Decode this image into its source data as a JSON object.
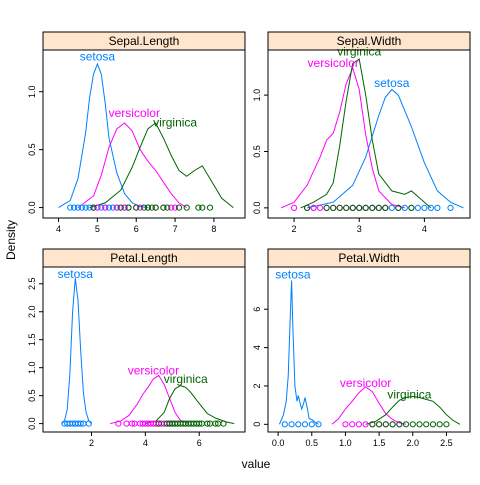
{
  "xlabel": "value",
  "ylabel": "Density",
  "colors": {
    "setosa": "#0080ff",
    "versicolor": "#ff00ff",
    "virginica": "#006400",
    "strip": "#ffe5cc"
  },
  "chart_data": [
    {
      "type": "line",
      "title": "Sepal.Length",
      "xlim": [
        3.6,
        8.8
      ],
      "ylim": [
        -0.09,
        1.36
      ],
      "xticks": [
        4,
        5,
        6,
        7,
        8
      ],
      "yticks": [
        0.0,
        0.5,
        1.0
      ],
      "series": [
        {
          "name": "setosa",
          "x": [
            4.0,
            4.3,
            4.5,
            4.7,
            4.8,
            4.9,
            5.0,
            5.1,
            5.2,
            5.3,
            5.5,
            5.7,
            5.9,
            6.1,
            6.3
          ],
          "y": [
            0.0,
            0.06,
            0.25,
            0.65,
            0.95,
            1.15,
            1.24,
            1.15,
            0.9,
            0.6,
            0.3,
            0.12,
            0.04,
            0.01,
            0.0
          ],
          "points": [
            4.3,
            4.4,
            4.5,
            4.6,
            4.7,
            4.8,
            4.9,
            5.0,
            5.1,
            5.2,
            5.3,
            5.4,
            5.5,
            5.7,
            5.8
          ]
        },
        {
          "name": "versicolor",
          "x": [
            4.5,
            4.9,
            5.1,
            5.3,
            5.5,
            5.7,
            5.9,
            6.1,
            6.3,
            6.5,
            6.7,
            6.9,
            7.1,
            7.3
          ],
          "y": [
            0.0,
            0.1,
            0.28,
            0.52,
            0.68,
            0.73,
            0.66,
            0.5,
            0.4,
            0.32,
            0.22,
            0.12,
            0.04,
            0.0
          ],
          "points": [
            4.9,
            5.0,
            5.2,
            5.5,
            5.6,
            5.7,
            5.8,
            6.0,
            6.1,
            6.3,
            6.5,
            6.7,
            6.9,
            7.0
          ]
        },
        {
          "name": "virginica",
          "x": [
            4.8,
            5.2,
            5.6,
            5.9,
            6.1,
            6.3,
            6.5,
            6.7,
            6.9,
            7.1,
            7.3,
            7.5,
            7.7,
            7.9,
            8.2,
            8.5
          ],
          "y": [
            0.0,
            0.04,
            0.15,
            0.35,
            0.52,
            0.68,
            0.73,
            0.6,
            0.45,
            0.32,
            0.27,
            0.32,
            0.36,
            0.25,
            0.08,
            0.0
          ],
          "points": [
            4.9,
            5.6,
            5.8,
            6.0,
            6.2,
            6.3,
            6.4,
            6.5,
            6.7,
            6.8,
            7.1,
            7.3,
            7.6,
            7.7,
            7.9
          ]
        }
      ],
      "labels": [
        {
          "text": "setosa",
          "series": "setosa",
          "x": 5.0,
          "y": 1.27
        },
        {
          "text": "versicolor",
          "series": "versicolor",
          "x": 5.95,
          "y": 0.78
        },
        {
          "text": "virginica",
          "series": "virginica",
          "x": 7.0,
          "y": 0.7
        }
      ]
    },
    {
      "type": "line",
      "title": "Sepal.Width",
      "xlim": [
        1.6,
        4.7
      ],
      "ylim": [
        -0.09,
        1.4
      ],
      "xticks": [
        2,
        3,
        4
      ],
      "yticks": [
        0.0,
        0.5,
        1.0
      ],
      "series": [
        {
          "name": "setosa",
          "x": [
            2.2,
            2.6,
            2.9,
            3.1,
            3.3,
            3.4,
            3.5,
            3.6,
            3.8,
            4.0,
            4.2,
            4.4,
            4.6
          ],
          "y": [
            0.0,
            0.05,
            0.2,
            0.45,
            0.82,
            0.98,
            1.05,
            1.0,
            0.72,
            0.4,
            0.15,
            0.05,
            0.0
          ],
          "points": [
            2.3,
            2.9,
            3.0,
            3.1,
            3.2,
            3.3,
            3.4,
            3.5,
            3.6,
            3.7,
            3.8,
            3.9,
            4.0,
            4.1,
            4.2,
            4.4
          ]
        },
        {
          "name": "versicolor",
          "x": [
            1.8,
            2.0,
            2.2,
            2.4,
            2.5,
            2.6,
            2.7,
            2.8,
            2.9,
            3.0,
            3.1,
            3.2,
            3.3,
            3.5,
            3.7
          ],
          "y": [
            0.0,
            0.05,
            0.2,
            0.45,
            0.6,
            0.66,
            0.85,
            1.1,
            1.24,
            1.05,
            0.65,
            0.35,
            0.15,
            0.03,
            0.0
          ],
          "points": [
            2.0,
            2.2,
            2.3,
            2.4,
            2.5,
            2.6,
            2.7,
            2.8,
            2.9,
            3.0,
            3.1,
            3.2,
            3.3,
            3.4
          ]
        },
        {
          "name": "virginica",
          "x": [
            2.1,
            2.3,
            2.5,
            2.6,
            2.7,
            2.8,
            2.9,
            3.0,
            3.1,
            3.2,
            3.3,
            3.5,
            3.7,
            3.8,
            4.0,
            4.1
          ],
          "y": [
            0.0,
            0.05,
            0.12,
            0.22,
            0.55,
            0.95,
            1.28,
            1.32,
            1.0,
            0.6,
            0.3,
            0.15,
            0.12,
            0.15,
            0.05,
            0.0
          ],
          "points": [
            2.2,
            2.5,
            2.6,
            2.7,
            2.8,
            2.9,
            3.0,
            3.1,
            3.2,
            3.3,
            3.4,
            3.6,
            3.8
          ]
        }
      ],
      "labels": [
        {
          "text": "virginica",
          "series": "virginica",
          "x": 3.0,
          "y": 1.35
        },
        {
          "text": "versicolor",
          "series": "versicolor",
          "x": 2.6,
          "y": 1.25
        },
        {
          "text": "setosa",
          "series": "setosa",
          "x": 3.5,
          "y": 1.07
        }
      ]
    },
    {
      "type": "line",
      "title": "Petal.Length",
      "xlim": [
        0.2,
        7.7
      ],
      "ylim": [
        -0.15,
        2.8
      ],
      "xticks": [
        2,
        4,
        6
      ],
      "yticks": [
        0.0,
        0.5,
        1.0,
        1.5,
        2.0,
        2.5
      ],
      "series": [
        {
          "name": "setosa",
          "x": [
            0.9,
            1.0,
            1.1,
            1.2,
            1.3,
            1.4,
            1.5,
            1.6,
            1.7,
            1.8,
            1.9,
            2.0
          ],
          "y": [
            0.0,
            0.05,
            0.25,
            0.9,
            2.0,
            2.6,
            2.2,
            1.3,
            0.55,
            0.2,
            0.05,
            0.0
          ],
          "points": [
            1.0,
            1.1,
            1.2,
            1.3,
            1.4,
            1.5,
            1.6,
            1.7,
            1.9
          ]
        },
        {
          "name": "versicolor",
          "x": [
            2.7,
            3.1,
            3.4,
            3.7,
            3.9,
            4.1,
            4.3,
            4.5,
            4.7,
            4.9,
            5.1,
            5.3,
            5.6
          ],
          "y": [
            0.0,
            0.05,
            0.15,
            0.35,
            0.52,
            0.65,
            0.8,
            0.86,
            0.7,
            0.45,
            0.2,
            0.06,
            0.0
          ],
          "points": [
            3.0,
            3.3,
            3.5,
            3.6,
            3.8,
            3.9,
            4.0,
            4.1,
            4.2,
            4.3,
            4.4,
            4.5,
            4.6,
            4.7,
            4.8,
            4.9,
            5.0,
            5.1
          ]
        },
        {
          "name": "virginica",
          "x": [
            4.0,
            4.4,
            4.7,
            4.9,
            5.1,
            5.3,
            5.5,
            5.7,
            5.9,
            6.1,
            6.3,
            6.6,
            7.0,
            7.3
          ],
          "y": [
            0.0,
            0.05,
            0.2,
            0.45,
            0.62,
            0.68,
            0.65,
            0.55,
            0.42,
            0.3,
            0.18,
            0.1,
            0.03,
            0.0
          ],
          "points": [
            4.5,
            4.8,
            4.9,
            5.0,
            5.1,
            5.2,
            5.3,
            5.4,
            5.5,
            5.6,
            5.7,
            5.8,
            5.9,
            6.0,
            6.1,
            6.3,
            6.4,
            6.6,
            6.7,
            6.9
          ]
        }
      ],
      "labels": [
        {
          "text": "setosa",
          "series": "setosa",
          "x": 1.4,
          "y": 2.6
        },
        {
          "text": "versicolor",
          "series": "versicolor",
          "x": 4.3,
          "y": 0.88
        },
        {
          "text": "virginica",
          "series": "virginica",
          "x": 5.5,
          "y": 0.73
        }
      ]
    },
    {
      "type": "line",
      "title": "Petal.Width",
      "xlim": [
        -0.15,
        2.85
      ],
      "ylim": [
        -0.4,
        8.2
      ],
      "xticks": [
        0.0,
        0.5,
        1.0,
        1.5,
        2.0,
        2.5
      ],
      "yticks": [
        0,
        2,
        4,
        6
      ],
      "series": [
        {
          "name": "setosa",
          "x": [
            0.02,
            0.08,
            0.12,
            0.15,
            0.18,
            0.2,
            0.22,
            0.25,
            0.28,
            0.3,
            0.32,
            0.35,
            0.38,
            0.4,
            0.43,
            0.46,
            0.5,
            0.55,
            0.6
          ],
          "y": [
            0.0,
            0.5,
            1.2,
            2.5,
            5.5,
            7.5,
            5.0,
            2.0,
            1.2,
            1.5,
            1.2,
            0.8,
            1.1,
            1.4,
            0.9,
            0.3,
            0.25,
            0.1,
            0.0
          ],
          "points": [
            0.1,
            0.2,
            0.3,
            0.4,
            0.5,
            0.6
          ]
        },
        {
          "name": "versicolor",
          "x": [
            0.8,
            0.9,
            1.0,
            1.1,
            1.2,
            1.3,
            1.4,
            1.5,
            1.6,
            1.7,
            1.8,
            1.9
          ],
          "y": [
            0.0,
            0.3,
            0.8,
            1.2,
            1.65,
            1.95,
            1.7,
            1.1,
            0.55,
            0.25,
            0.08,
            0.0
          ],
          "points": [
            1.0,
            1.1,
            1.2,
            1.3,
            1.4,
            1.5,
            1.6,
            1.7,
            1.8
          ]
        },
        {
          "name": "virginica",
          "x": [
            1.3,
            1.45,
            1.6,
            1.7,
            1.8,
            1.9,
            2.0,
            2.1,
            2.2,
            2.3,
            2.4,
            2.5,
            2.6,
            2.7
          ],
          "y": [
            0.0,
            0.15,
            0.5,
            0.9,
            1.25,
            1.4,
            1.45,
            1.4,
            1.3,
            1.2,
            0.9,
            0.5,
            0.2,
            0.0
          ],
          "points": [
            1.4,
            1.5,
            1.6,
            1.7,
            1.8,
            1.9,
            2.0,
            2.1,
            2.2,
            2.3,
            2.4,
            2.5
          ]
        }
      ],
      "labels": [
        {
          "text": "setosa",
          "series": "setosa",
          "x": 0.22,
          "y": 7.6
        },
        {
          "text": "versicolor",
          "series": "versicolor",
          "x": 1.3,
          "y": 1.95
        },
        {
          "text": "virginica",
          "series": "virginica",
          "x": 1.95,
          "y": 1.35
        }
      ]
    }
  ]
}
